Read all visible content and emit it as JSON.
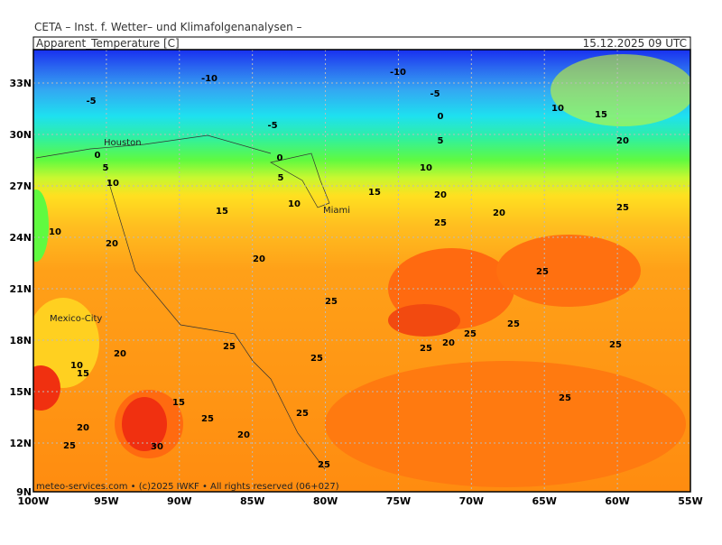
{
  "header": {
    "title": "CETA – Inst. f. Wetter– und Klimafolgenanalysen –"
  },
  "map": {
    "title": "Apparent_Temperature [C]",
    "time": "15.12.2025 09 UTC",
    "lat_labels": [
      "33N",
      "30N",
      "27N",
      "24N",
      "21N",
      "18N",
      "15N",
      "12N",
      "9N"
    ],
    "lon_labels": [
      "100W",
      "95W",
      "90W",
      "85W",
      "80W",
      "75W",
      "70W",
      "65W",
      "60W",
      "55W"
    ],
    "contour_labels": [
      "-10",
      "-10",
      "-5",
      "-5",
      "-5",
      "0",
      "0",
      "0",
      "5",
      "5",
      "5",
      "10",
      "10",
      "10",
      "10",
      "10",
      "10",
      "15",
      "15",
      "15",
      "15",
      "15",
      "20",
      "20",
      "20",
      "20",
      "20",
      "20",
      "20",
      "20",
      "20",
      "25",
      "25",
      "25",
      "25",
      "25",
      "25",
      "25",
      "25",
      "25",
      "25",
      "25",
      "25",
      "25",
      "25",
      "25",
      "30"
    ],
    "cities": [
      "Houston",
      "Miami",
      "Mexico-City"
    ],
    "footer": "meteo-services.com • (c)2025 IWKF • All rights reserved (06+027)"
  }
}
